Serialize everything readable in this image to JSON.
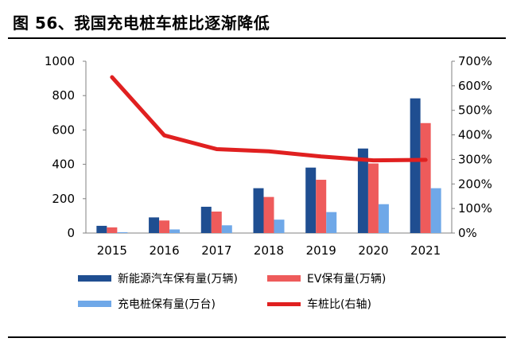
{
  "title": "图 56、我国充电桩车桩比逐渐降低",
  "chart_data": {
    "type": "bar",
    "categories": [
      "2015",
      "2016",
      "2017",
      "2018",
      "2019",
      "2020",
      "2021"
    ],
    "series": [
      {
        "name": "新能源汽车保有量(万辆)",
        "type": "bar",
        "axis": "left",
        "color": "#1f4e91",
        "values": [
          42,
          91,
          153,
          261,
          381,
          492,
          784
        ]
      },
      {
        "name": "EV保有量(万辆)",
        "type": "bar",
        "axis": "left",
        "color": "#ee5b5b",
        "values": [
          33,
          73,
          125,
          210,
          310,
          405,
          640
        ]
      },
      {
        "name": "充电桩保有量(万台)",
        "type": "bar",
        "axis": "left",
        "color": "#6fa8e8",
        "values": [
          5,
          21,
          45,
          78,
          122,
          168,
          261
        ]
      },
      {
        "name": "车桩比(右轴)",
        "type": "line",
        "axis": "right",
        "color": "#e02020",
        "values": [
          635,
          398,
          342,
          333,
          312,
          296,
          298
        ]
      }
    ],
    "left_axis": {
      "min": 0,
      "max": 1000,
      "ticks": [
        "0",
        "200",
        "400",
        "600",
        "800",
        "1000"
      ]
    },
    "right_axis": {
      "min": 0,
      "max": 700,
      "ticks": [
        "0%",
        "100%",
        "200%",
        "300%",
        "400%",
        "500%",
        "600%",
        "700%"
      ]
    },
    "grid": false,
    "legend_position": "bottom"
  }
}
